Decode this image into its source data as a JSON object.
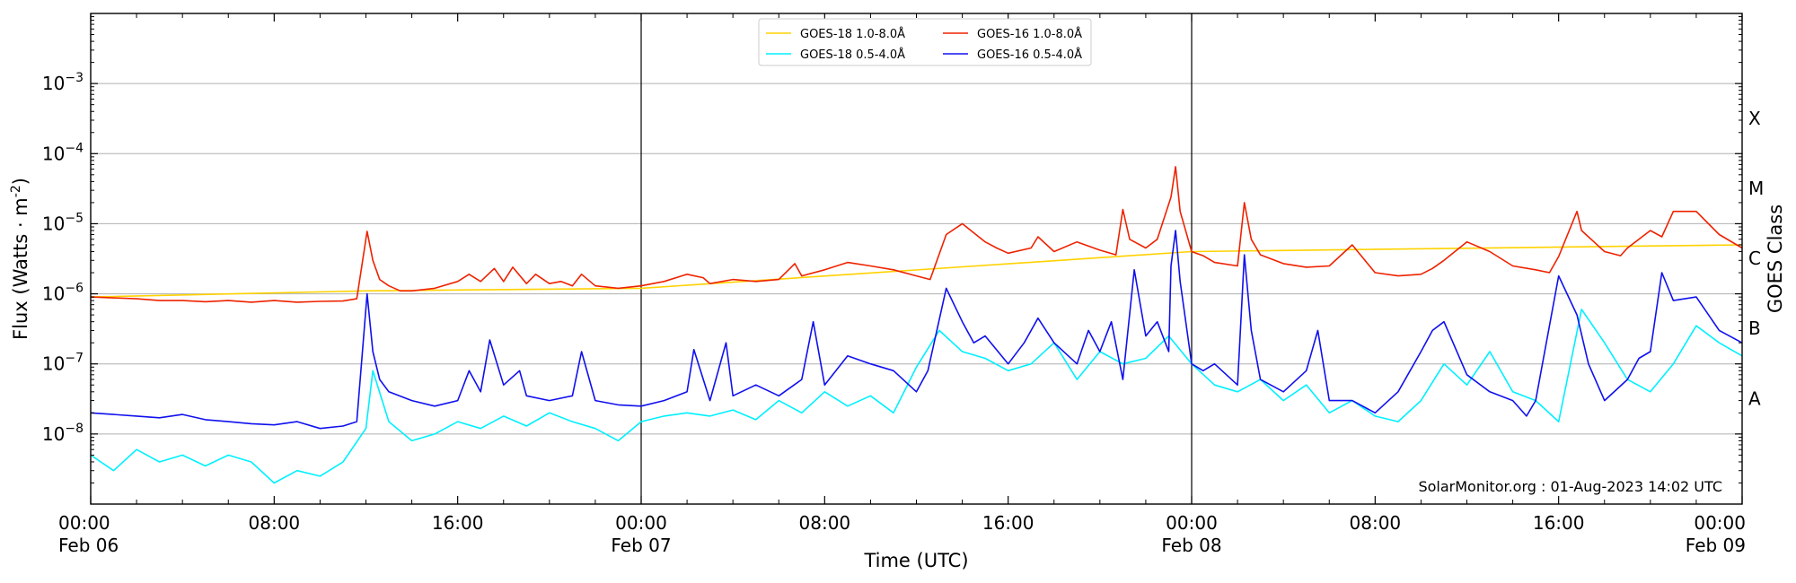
{
  "chart_data": {
    "type": "line",
    "title": "",
    "xlabel": "Time (UTC)",
    "ylabel": "Flux (Watts · m",
    "ylabel_sup": "-2",
    "ylabel_close": ")",
    "right_label": "GOES Class",
    "credit": "SolarMonitor.org : 01-Aug-2023 14:02 UTC",
    "x_unit": "hours since 06 Feb 00:00 UTC",
    "xlim": [
      0,
      72
    ],
    "ylim": [
      1e-09,
      0.01
    ],
    "yscale": "log",
    "grid": "horizontal",
    "legend_position": "top-center",
    "y_ticks": [
      {
        "value": 1e-08,
        "base": "10",
        "exp": "−8"
      },
      {
        "value": 1e-07,
        "base": "10",
        "exp": "−7"
      },
      {
        "value": 1e-06,
        "base": "10",
        "exp": "−6"
      },
      {
        "value": 1e-05,
        "base": "10",
        "exp": "−5"
      },
      {
        "value": 0.0001,
        "base": "10",
        "exp": "−4"
      },
      {
        "value": 0.001,
        "base": "10",
        "exp": "−3"
      }
    ],
    "x_ticks": [
      {
        "value": 0,
        "time": "00:00",
        "date": "Feb 06"
      },
      {
        "value": 8,
        "time": "08:00",
        "date": ""
      },
      {
        "value": 16,
        "time": "16:00",
        "date": ""
      },
      {
        "value": 24,
        "time": "00:00",
        "date": "Feb 07"
      },
      {
        "value": 32,
        "time": "08:00",
        "date": ""
      },
      {
        "value": 40,
        "time": "16:00",
        "date": ""
      },
      {
        "value": 48,
        "time": "00:00",
        "date": "Feb 08"
      },
      {
        "value": 56,
        "time": "08:00",
        "date": ""
      },
      {
        "value": 64,
        "time": "16:00",
        "date": ""
      },
      {
        "value": 72,
        "time": "00:00",
        "date": "Feb 09"
      }
    ],
    "day_boundaries": [
      24,
      48
    ],
    "goes_classes": [
      {
        "label": "A",
        "value": 3.2e-08
      },
      {
        "label": "B",
        "value": 3.2e-07
      },
      {
        "label": "C",
        "value": 3.2e-06
      },
      {
        "label": "M",
        "value": 3.2e-05
      },
      {
        "label": "X",
        "value": 0.00032
      }
    ],
    "series": [
      {
        "name": "GOES-18 1.0-8.0Å",
        "color": "#ffd200",
        "x": [
          0,
          12,
          24,
          48,
          72
        ],
        "y": [
          9e-07,
          1.1e-06,
          1.2e-06,
          4e-06,
          5e-06
        ]
      },
      {
        "name": "GOES-16 1.0-8.0Å",
        "color": "#ee2200",
        "x": [
          0,
          2,
          3,
          4,
          5,
          6,
          7,
          8,
          9,
          10,
          11,
          11.6,
          12.05,
          12.3,
          12.6,
          13,
          13.5,
          14,
          15,
          16,
          16.5,
          17,
          17.6,
          18,
          18.4,
          19,
          19.4,
          20,
          20.5,
          21,
          21.4,
          22,
          23,
          24,
          25,
          26,
          26.7,
          27,
          28,
          29,
          30,
          30.7,
          31,
          32,
          33,
          34,
          35,
          36,
          36.6,
          37.3,
          38,
          39,
          39.5,
          40,
          41,
          41.3,
          42,
          43,
          44,
          44.7,
          45,
          45.3,
          46,
          46.5,
          47.1,
          47.3,
          47.5,
          48,
          48.5,
          49,
          50,
          50.3,
          50.6,
          51,
          52,
          53,
          54,
          55,
          56,
          57,
          58,
          58.5,
          59,
          60,
          61,
          62,
          63,
          63.6,
          64,
          64.8,
          65,
          66,
          66.7,
          67,
          68,
          68.5,
          69,
          70,
          71,
          72
        ],
        "y": [
          9e-07,
          8.5e-07,
          8e-07,
          8e-07,
          7.7e-07,
          8e-07,
          7.6e-07,
          8e-07,
          7.6e-07,
          7.8e-07,
          7.9e-07,
          8.5e-07,
          7.8e-06,
          3e-06,
          1.6e-06,
          1.3e-06,
          1.1e-06,
          1.1e-06,
          1.2e-06,
          1.5e-06,
          1.9e-06,
          1.5e-06,
          2.3e-06,
          1.5e-06,
          2.4e-06,
          1.4e-06,
          1.9e-06,
          1.4e-06,
          1.5e-06,
          1.3e-06,
          1.9e-06,
          1.3e-06,
          1.2e-06,
          1.3e-06,
          1.5e-06,
          1.9e-06,
          1.7e-06,
          1.4e-06,
          1.6e-06,
          1.5e-06,
          1.6e-06,
          2.7e-06,
          1.8e-06,
          2.2e-06,
          2.8e-06,
          2.5e-06,
          2.2e-06,
          1.8e-06,
          1.6e-06,
          7e-06,
          1e-05,
          5.5e-06,
          4.5e-06,
          3.8e-06,
          4.5e-06,
          6.5e-06,
          4e-06,
          5.5e-06,
          4.2e-06,
          3.6e-06,
          1.6e-05,
          6e-06,
          4.5e-06,
          6e-06,
          2.4e-05,
          6.5e-05,
          1.5e-05,
          4e-06,
          3.5e-06,
          2.8e-06,
          2.5e-06,
          2e-05,
          6e-06,
          3.6e-06,
          2.7e-06,
          2.4e-06,
          2.5e-06,
          5e-06,
          2e-06,
          1.8e-06,
          1.9e-06,
          2.3e-06,
          3e-06,
          5.5e-06,
          4e-06,
          2.5e-06,
          2.2e-06,
          2e-06,
          3.4e-06,
          1.5e-05,
          8e-06,
          4e-06,
          3.5e-06,
          4.5e-06,
          8e-06,
          6.5e-06,
          1.5e-05,
          1.5e-05,
          7e-06,
          4.5e-06
        ]
      },
      {
        "name": "GOES-18 0.5-4.0Å",
        "color": "#00f0ff",
        "x": [
          0,
          1,
          2,
          3,
          4,
          5,
          6,
          7,
          8,
          9,
          10,
          11,
          12,
          12.3,
          13,
          14,
          15,
          16,
          17,
          18,
          19,
          20,
          21,
          22,
          23,
          24,
          25,
          26,
          27,
          28,
          29,
          30,
          31,
          32,
          33,
          34,
          35,
          36,
          37,
          38,
          39,
          40,
          41,
          42,
          43,
          44,
          45,
          46,
          47,
          48,
          49,
          50,
          51,
          52,
          53,
          54,
          55,
          56,
          57,
          58,
          59,
          60,
          61,
          62,
          63,
          64,
          65,
          66,
          67,
          68,
          69,
          70,
          71,
          72
        ],
        "y": [
          5e-09,
          3e-09,
          6e-09,
          4e-09,
          5e-09,
          3.5e-09,
          5e-09,
          4e-09,
          2e-09,
          3e-09,
          2.5e-09,
          4e-09,
          1.2e-08,
          8e-08,
          1.5e-08,
          8e-09,
          1e-08,
          1.5e-08,
          1.2e-08,
          1.8e-08,
          1.3e-08,
          2e-08,
          1.5e-08,
          1.2e-08,
          8e-09,
          1.5e-08,
          1.8e-08,
          2e-08,
          1.8e-08,
          2.2e-08,
          1.6e-08,
          3e-08,
          2e-08,
          4e-08,
          2.5e-08,
          3.5e-08,
          2e-08,
          9e-08,
          3e-07,
          1.5e-07,
          1.2e-07,
          8e-08,
          1e-07,
          2e-07,
          6e-08,
          1.5e-07,
          1e-07,
          1.2e-07,
          2.5e-07,
          1e-07,
          5e-08,
          4e-08,
          6e-08,
          3e-08,
          5e-08,
          2e-08,
          3e-08,
          1.8e-08,
          1.5e-08,
          3e-08,
          1e-07,
          5e-08,
          1.5e-07,
          4e-08,
          3e-08,
          1.5e-08,
          6e-07,
          2e-07,
          6e-08,
          4e-08,
          1e-07,
          3.5e-07,
          2e-07,
          1.3e-07
        ]
      },
      {
        "name": "GOES-16 0.5-4.0Å",
        "color": "#1010ee",
        "x": [
          0,
          1,
          2,
          3,
          4,
          5,
          6,
          7,
          8,
          9,
          10,
          11,
          11.6,
          12.05,
          12.3,
          12.6,
          13,
          14,
          15,
          16,
          16.5,
          17,
          17.4,
          18,
          18.7,
          19,
          20,
          21,
          21.4,
          22,
          23,
          24,
          25,
          26,
          26.3,
          27,
          27.7,
          28,
          29,
          30,
          31,
          31.5,
          32,
          33,
          34,
          35,
          36,
          36.5,
          37.3,
          38,
          38.5,
          39,
          40,
          40.7,
          41.3,
          42,
          43,
          43.5,
          44,
          44.5,
          45,
          45.5,
          46,
          46.5,
          47,
          47.1,
          47.3,
          47.5,
          48,
          48.5,
          49,
          50,
          50.3,
          50.6,
          51,
          52,
          53,
          53.5,
          54,
          55,
          56,
          57,
          58,
          58.5,
          59,
          60,
          61,
          62,
          62.6,
          63,
          64,
          64.8,
          65.3,
          66,
          67,
          67.5,
          68,
          68.5,
          69,
          70,
          71,
          72
        ],
        "y": [
          2e-08,
          1.9e-08,
          1.8e-08,
          1.7e-08,
          1.9e-08,
          1.6e-08,
          1.5e-08,
          1.4e-08,
          1.35e-08,
          1.5e-08,
          1.2e-08,
          1.3e-08,
          1.5e-08,
          1e-06,
          1.5e-07,
          6e-08,
          4e-08,
          3e-08,
          2.5e-08,
          3e-08,
          8e-08,
          4e-08,
          2.2e-07,
          5e-08,
          8e-08,
          3.5e-08,
          3e-08,
          3.5e-08,
          1.5e-07,
          3e-08,
          2.6e-08,
          2.5e-08,
          3e-08,
          4e-08,
          1.6e-07,
          3e-08,
          2e-07,
          3.5e-08,
          5e-08,
          3.5e-08,
          6e-08,
          4e-07,
          5e-08,
          1.3e-07,
          1e-07,
          8e-08,
          4e-08,
          8e-08,
          1.2e-06,
          4e-07,
          2e-07,
          2.5e-07,
          1e-07,
          2e-07,
          4.5e-07,
          2e-07,
          1e-07,
          3e-07,
          1.5e-07,
          4e-07,
          6e-08,
          2.2e-06,
          2.5e-07,
          4e-07,
          1.5e-07,
          2.5e-06,
          8e-06,
          1.5e-06,
          1e-07,
          8e-08,
          1e-07,
          5e-08,
          3.6e-06,
          3e-07,
          6e-08,
          4e-08,
          8e-08,
          3e-07,
          3e-08,
          3e-08,
          2e-08,
          4e-08,
          1.5e-07,
          3e-07,
          4e-07,
          7e-08,
          4e-08,
          3e-08,
          1.8e-08,
          3e-08,
          1.8e-06,
          5e-07,
          1e-07,
          3e-08,
          6e-08,
          1.2e-07,
          1.5e-07,
          2e-06,
          8e-07,
          9e-07,
          3e-07,
          2e-07
        ]
      }
    ]
  }
}
